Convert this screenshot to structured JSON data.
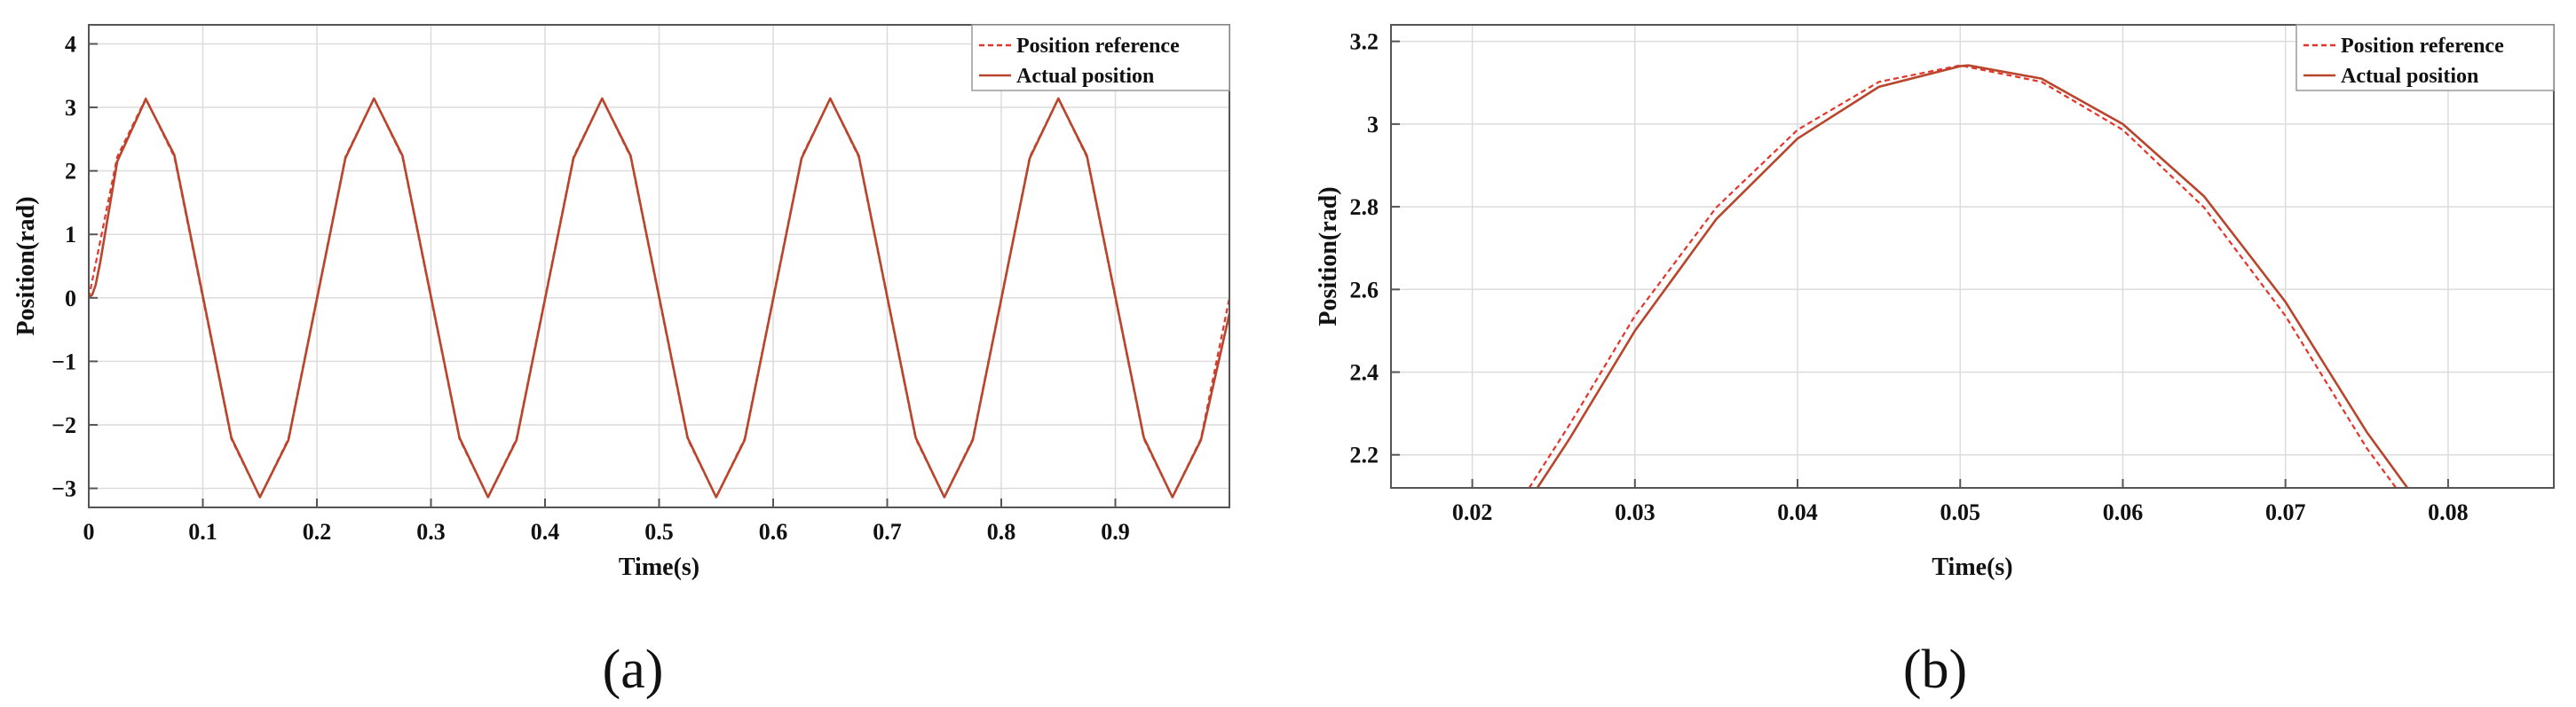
{
  "colors": {
    "reference": "#e8332a",
    "actual": "#b8452c",
    "grid": "#dcdcdc",
    "axis": "#555555"
  },
  "chart_data": [
    {
      "type": "line",
      "panel_label": "(a)",
      "xlabel": "Time(s)",
      "ylabel": "Position(rad)",
      "xlim": [
        0,
        1
      ],
      "ylim": [
        -3.3,
        4.3
      ],
      "x_ticks": [
        0,
        0.1,
        0.2,
        0.3,
        0.4,
        0.5,
        0.6,
        0.7,
        0.8,
        0.9
      ],
      "x_tick_labels": [
        "0",
        "0.1",
        "0.2",
        "0.3",
        "0.4",
        "0.5",
        "0.6",
        "0.7",
        "0.8",
        "0.9"
      ],
      "y_ticks": [
        -3,
        -2,
        -1,
        0,
        1,
        2,
        3,
        4
      ],
      "y_tick_labels": [
        "−3",
        "−2",
        "−1",
        "0",
        "1",
        "2",
        "3",
        "4"
      ],
      "grid": true,
      "legend_position": "top-right",
      "series": [
        {
          "name": "Position reference",
          "style": "dashed",
          "x": [
            0,
            0.025,
            0.05,
            0.075,
            0.1,
            0.125,
            0.15,
            0.175,
            0.2,
            0.225,
            0.25,
            0.275,
            0.3,
            0.325,
            0.35,
            0.375,
            0.4,
            0.425,
            0.45,
            0.475,
            0.5,
            0.525,
            0.55,
            0.575,
            0.6,
            0.625,
            0.65,
            0.675,
            0.7,
            0.725,
            0.75,
            0.775,
            0.8,
            0.825,
            0.85,
            0.875,
            0.9,
            0.925,
            0.95,
            0.975,
            1.0
          ],
          "y": [
            0,
            2.22,
            3.14,
            2.22,
            0,
            -2.22,
            -3.14,
            -2.22,
            0,
            2.22,
            3.14,
            2.22,
            0,
            -2.22,
            -3.14,
            -2.22,
            0,
            2.22,
            3.14,
            2.22,
            0,
            -2.22,
            -3.14,
            -2.22,
            0,
            2.22,
            3.14,
            2.22,
            0,
            -2.22,
            -3.14,
            -2.22,
            0,
            2.22,
            3.14,
            2.22,
            0,
            -2.22,
            -3.14,
            -2.22,
            0
          ]
        },
        {
          "name": "Actual position",
          "style": "solid",
          "x": [
            0,
            0.003,
            0.006,
            0.01,
            0.025,
            0.05,
            0.075,
            0.1,
            0.125,
            0.15,
            0.175,
            0.2,
            0.225,
            0.25,
            0.275,
            0.3,
            0.325,
            0.35,
            0.375,
            0.4,
            0.425,
            0.45,
            0.475,
            0.5,
            0.525,
            0.55,
            0.575,
            0.6,
            0.625,
            0.65,
            0.675,
            0.7,
            0.725,
            0.75,
            0.775,
            0.8,
            0.825,
            0.85,
            0.875,
            0.9,
            0.925,
            0.95,
            0.975,
            1.0
          ],
          "y": [
            0,
            0.05,
            0.2,
            0.55,
            2.15,
            3.13,
            2.25,
            0.03,
            -2.2,
            -3.14,
            -2.24,
            -0.02,
            2.2,
            3.14,
            2.24,
            0.02,
            -2.2,
            -3.14,
            -2.24,
            -0.02,
            2.2,
            3.14,
            2.24,
            0.02,
            -2.2,
            -3.14,
            -2.24,
            -0.02,
            2.2,
            3.14,
            2.24,
            0.02,
            -2.2,
            -3.14,
            -2.24,
            -0.02,
            2.2,
            3.14,
            2.24,
            0.02,
            -2.2,
            -3.14,
            -2.24,
            -0.25
          ]
        }
      ]
    },
    {
      "type": "line",
      "panel_label": "(b)",
      "xlabel": "Time(s)",
      "ylabel": "Position(rad)",
      "xlim": [
        0.015,
        0.0865
      ],
      "ylim": [
        2.12,
        3.24
      ],
      "x_ticks": [
        0.02,
        0.03,
        0.04,
        0.05,
        0.06,
        0.07,
        0.08
      ],
      "x_tick_labels": [
        "0.02",
        "0.03",
        "0.04",
        "0.05",
        "0.06",
        "0.07",
        "0.08"
      ],
      "y_ticks": [
        2.2,
        2.4,
        2.6,
        2.8,
        3.0,
        3.2
      ],
      "y_tick_labels": [
        "2.2",
        "2.4",
        "2.6",
        "2.8",
        "3",
        "3.2"
      ],
      "grid": true,
      "legend_position": "top-right",
      "series": [
        {
          "name": "Position reference",
          "style": "dashed",
          "x": [
            0.0235,
            0.026,
            0.03,
            0.035,
            0.04,
            0.045,
            0.05,
            0.055,
            0.06,
            0.065,
            0.07,
            0.075,
            0.0768
          ],
          "y": [
            2.12,
            2.274,
            2.536,
            2.798,
            2.986,
            3.102,
            3.142,
            3.102,
            2.986,
            2.798,
            2.536,
            2.216,
            2.12
          ]
        },
        {
          "name": "Actual position",
          "style": "solid",
          "x": [
            0.024,
            0.026,
            0.03,
            0.035,
            0.04,
            0.045,
            0.05,
            0.0505,
            0.055,
            0.06,
            0.065,
            0.07,
            0.075,
            0.0775
          ],
          "y": [
            2.12,
            2.24,
            2.5,
            2.77,
            2.965,
            3.09,
            3.14,
            3.142,
            3.11,
            3.0,
            2.825,
            2.57,
            2.255,
            2.12
          ]
        }
      ]
    }
  ]
}
